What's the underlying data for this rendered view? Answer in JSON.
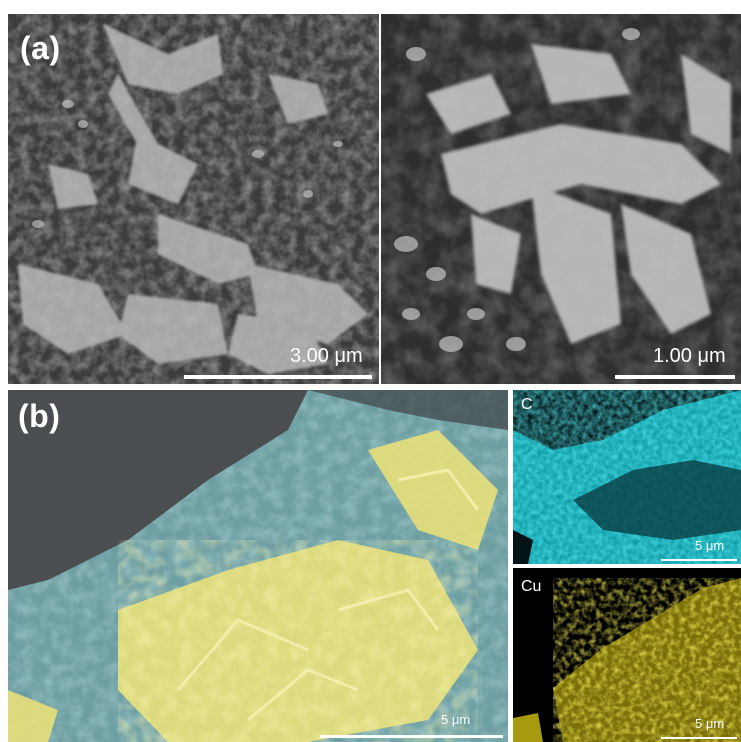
{
  "figure": {
    "panel_a": {
      "label": "(a)",
      "left_scale_bar": "3.00 μm",
      "right_scale_bar": "1.00 μm"
    },
    "panel_b": {
      "label": "(b)",
      "main_scale_bar": "5 μm",
      "maps": [
        {
          "element": "C",
          "scale_bar": "5 μm",
          "color": "#19c9d4"
        },
        {
          "element": "Cu",
          "scale_bar": "5 μm",
          "color": "#e2d21a"
        }
      ]
    }
  }
}
